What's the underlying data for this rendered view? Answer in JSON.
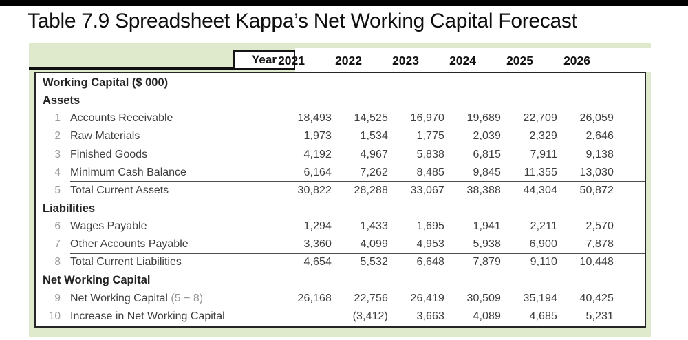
{
  "page": {
    "title": "Table 7.9 Spreadsheet  Kappa’s Net Working Capital Forecast"
  },
  "table": {
    "corner_label": "Year",
    "years": [
      "2021",
      "2022",
      "2023",
      "2024",
      "2025",
      "2026"
    ],
    "rows": [
      {
        "type": "section",
        "label": "Working Capital ($ 000)"
      },
      {
        "type": "section",
        "label": "Assets"
      },
      {
        "type": "data",
        "num": "1",
        "label": "Accounts Receivable",
        "values": [
          "18,493",
          "14,525",
          "16,970",
          "19,689",
          "22,709",
          "26,059"
        ]
      },
      {
        "type": "data",
        "num": "2",
        "label": "Raw Materials",
        "values": [
          "1,973",
          "1,534",
          "1,775",
          "2,039",
          "2,329",
          "2,646"
        ]
      },
      {
        "type": "data",
        "num": "3",
        "label": "Finished Goods",
        "values": [
          "4,192",
          "4,967",
          "5,838",
          "6,815",
          "7,911",
          "9,138"
        ]
      },
      {
        "type": "data",
        "num": "4",
        "label": "Minimum Cash Balance",
        "values": [
          "6,164",
          "7,262",
          "8,485",
          "9,845",
          "11,355",
          "13,030"
        ]
      },
      {
        "type": "data",
        "num": "5",
        "label": "Total Current Assets",
        "total": true,
        "values": [
          "30,822",
          "28,288",
          "33,067",
          "38,388",
          "44,304",
          "50,872"
        ]
      },
      {
        "type": "section",
        "label": "Liabilities"
      },
      {
        "type": "data",
        "num": "6",
        "label": "Wages Payable",
        "values": [
          "1,294",
          "1,433",
          "1,695",
          "1,941",
          "2,211",
          "2,570"
        ]
      },
      {
        "type": "data",
        "num": "7",
        "label": "Other Accounts Payable",
        "values": [
          "3,360",
          "4,099",
          "4,953",
          "5,938",
          "6,900",
          "7,878"
        ]
      },
      {
        "type": "data",
        "num": "8",
        "label": "Total Current Liabilities",
        "total": true,
        "values": [
          "4,654",
          "5,532",
          "6,648",
          "7,879",
          "9,110",
          "10,448"
        ]
      },
      {
        "type": "section",
        "label": "Net Working Capital"
      },
      {
        "type": "data",
        "num": "9",
        "label": "Net Working Capital",
        "label_suffix": "(5 − 8)",
        "values": [
          "26,168",
          "22,756",
          "26,419",
          "30,509",
          "35,194",
          "40,425"
        ]
      },
      {
        "type": "data",
        "num": "10",
        "label": "Increase in Net Working Capital",
        "values": [
          "",
          "(3,412)",
          "3,663",
          "4,089",
          "4,685",
          "5,231"
        ]
      }
    ]
  },
  "colors": {
    "panel_green": "#dfeacc",
    "row_number_gray": "#9b9b9b",
    "text_dark": "#3e3e3e",
    "border_black": "#262626"
  }
}
